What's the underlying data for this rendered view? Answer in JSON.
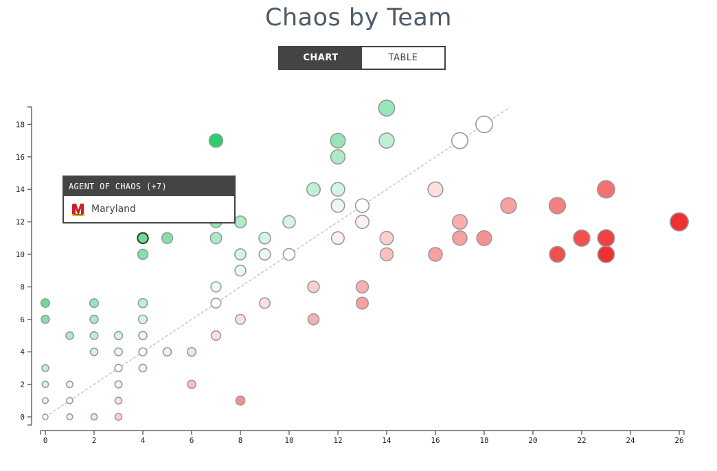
{
  "header": {
    "title": "Chaos by Team"
  },
  "view_toggle": {
    "chart_label": "CHART",
    "table_label": "TABLE",
    "active": "CHART"
  },
  "tooltip": {
    "heading": "AGENT OF CHAOS (+7)",
    "team": "Maryland",
    "logo_icon": "maryland-m-logo-icon"
  },
  "colors": {
    "green": "#2ecc71",
    "red": "#f03030",
    "neutral": "#ffffff",
    "stroke": "#999999",
    "axis": "#666666",
    "diagonal": "#bbbbbb"
  },
  "chart_data": {
    "type": "scatter",
    "title": "",
    "xlabel": "",
    "ylabel": "",
    "xlim": [
      0,
      26
    ],
    "ylim": [
      0,
      19
    ],
    "x_ticks": [
      0,
      2,
      4,
      6,
      8,
      10,
      12,
      14,
      16,
      18,
      20,
      22,
      24,
      26
    ],
    "y_ticks": [
      0,
      2,
      4,
      6,
      8,
      10,
      12,
      14,
      16,
      18
    ],
    "reference_line": {
      "from": [
        0,
        0
      ],
      "to": [
        19,
        19
      ],
      "style": "dashed"
    },
    "highlighted_point": {
      "x": 4,
      "y": 11,
      "team": "Maryland"
    },
    "points": [
      {
        "x": 0,
        "y": 0
      },
      {
        "x": 0,
        "y": 1
      },
      {
        "x": 0,
        "y": 2
      },
      {
        "x": 0,
        "y": 3
      },
      {
        "x": 0,
        "y": 6
      },
      {
        "x": 0,
        "y": 7
      },
      {
        "x": 1,
        "y": 0
      },
      {
        "x": 1,
        "y": 1
      },
      {
        "x": 1,
        "y": 2
      },
      {
        "x": 1,
        "y": 5
      },
      {
        "x": 2,
        "y": 0
      },
      {
        "x": 2,
        "y": 4
      },
      {
        "x": 2,
        "y": 5
      },
      {
        "x": 2,
        "y": 6
      },
      {
        "x": 2,
        "y": 7
      },
      {
        "x": 3,
        "y": 0
      },
      {
        "x": 3,
        "y": 1
      },
      {
        "x": 3,
        "y": 2
      },
      {
        "x": 3,
        "y": 3
      },
      {
        "x": 3,
        "y": 4
      },
      {
        "x": 3,
        "y": 5
      },
      {
        "x": 4,
        "y": 3
      },
      {
        "x": 4,
        "y": 4
      },
      {
        "x": 4,
        "y": 5
      },
      {
        "x": 4,
        "y": 6
      },
      {
        "x": 4,
        "y": 7
      },
      {
        "x": 4,
        "y": 10
      },
      {
        "x": 4,
        "y": 11
      },
      {
        "x": 5,
        "y": 4
      },
      {
        "x": 5,
        "y": 11
      },
      {
        "x": 6,
        "y": 2
      },
      {
        "x": 6,
        "y": 4
      },
      {
        "x": 7,
        "y": 5
      },
      {
        "x": 7,
        "y": 7
      },
      {
        "x": 7,
        "y": 8
      },
      {
        "x": 7,
        "y": 11
      },
      {
        "x": 7,
        "y": 12
      },
      {
        "x": 7,
        "y": 17
      },
      {
        "x": 8,
        "y": 1
      },
      {
        "x": 8,
        "y": 6
      },
      {
        "x": 8,
        "y": 9
      },
      {
        "x": 8,
        "y": 10
      },
      {
        "x": 8,
        "y": 12
      },
      {
        "x": 9,
        "y": 7
      },
      {
        "x": 9,
        "y": 10
      },
      {
        "x": 9,
        "y": 11
      },
      {
        "x": 10,
        "y": 10
      },
      {
        "x": 10,
        "y": 12
      },
      {
        "x": 11,
        "y": 6
      },
      {
        "x": 11,
        "y": 8
      },
      {
        "x": 11,
        "y": 14
      },
      {
        "x": 12,
        "y": 11
      },
      {
        "x": 12,
        "y": 13
      },
      {
        "x": 12,
        "y": 14
      },
      {
        "x": 12,
        "y": 16
      },
      {
        "x": 12,
        "y": 17
      },
      {
        "x": 13,
        "y": 7
      },
      {
        "x": 13,
        "y": 8
      },
      {
        "x": 13,
        "y": 12
      },
      {
        "x": 13,
        "y": 13
      },
      {
        "x": 14,
        "y": 10
      },
      {
        "x": 14,
        "y": 11
      },
      {
        "x": 14,
        "y": 17
      },
      {
        "x": 14,
        "y": 19
      },
      {
        "x": 16,
        "y": 10
      },
      {
        "x": 16,
        "y": 14
      },
      {
        "x": 17,
        "y": 11
      },
      {
        "x": 17,
        "y": 12
      },
      {
        "x": 17,
        "y": 17
      },
      {
        "x": 18,
        "y": 11
      },
      {
        "x": 18,
        "y": 18
      },
      {
        "x": 19,
        "y": 13
      },
      {
        "x": 21,
        "y": 10
      },
      {
        "x": 21,
        "y": 13
      },
      {
        "x": 22,
        "y": 11
      },
      {
        "x": 23,
        "y": 10
      },
      {
        "x": 23,
        "y": 11
      },
      {
        "x": 23,
        "y": 14
      },
      {
        "x": 26,
        "y": 12
      }
    ]
  }
}
